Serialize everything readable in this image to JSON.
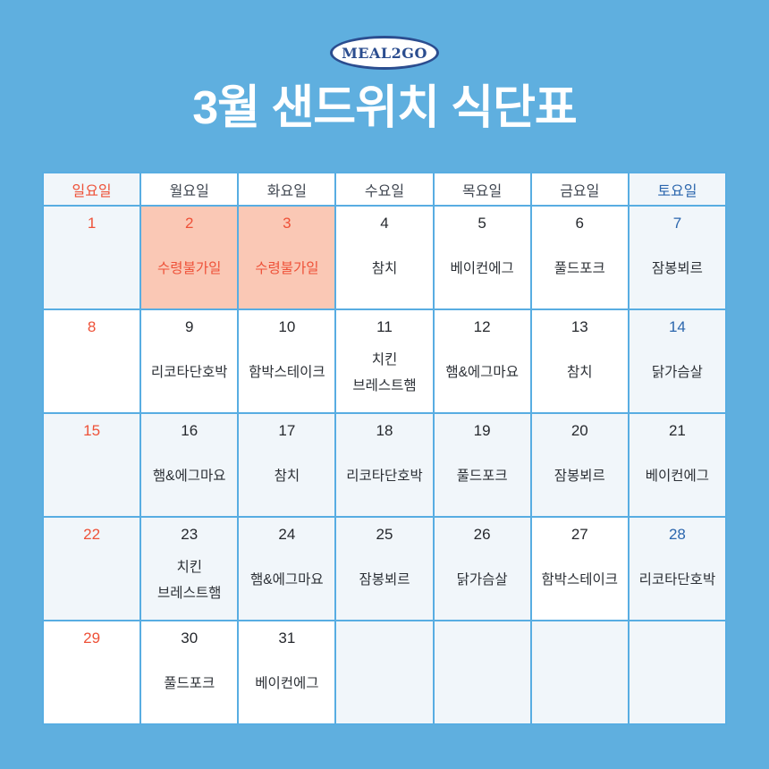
{
  "logo": {
    "text": "MEAL2GO"
  },
  "title": "3월 샌드위치 식단표",
  "colors": {
    "page_bg": "#5fafdf",
    "grid_line": "#58ade2",
    "cell_white": "#ffffff",
    "cell_tint": "#f1f6fa",
    "cell_salmon": "#fac8b5",
    "sunday_red": "#ee5138",
    "saturday_blue": "#2b66ad",
    "weekday_dark": "#26292e",
    "header_dark": "#3f4650",
    "menu_text": "#2c3036",
    "logo_navy": "#2b4d8f"
  },
  "calendar": {
    "headers": [
      {
        "label": "일요일",
        "color": "red",
        "bg": "tint"
      },
      {
        "label": "월요일",
        "color": "dark",
        "bg": "white"
      },
      {
        "label": "화요일",
        "color": "dark",
        "bg": "white"
      },
      {
        "label": "수요일",
        "color": "dark",
        "bg": "white"
      },
      {
        "label": "목요일",
        "color": "dark",
        "bg": "white"
      },
      {
        "label": "금요일",
        "color": "dark",
        "bg": "white"
      },
      {
        "label": "토요일",
        "color": "blue",
        "bg": "tint"
      }
    ],
    "weeks": [
      [
        {
          "day": "1",
          "num": "red",
          "menu": [],
          "menu_color": "dark",
          "bg": "tint"
        },
        {
          "day": "2",
          "num": "red",
          "menu": [
            "수령불가일"
          ],
          "menu_color": "red",
          "bg": "salmon"
        },
        {
          "day": "3",
          "num": "red",
          "menu": [
            "수령불가일"
          ],
          "menu_color": "red",
          "bg": "salmon"
        },
        {
          "day": "4",
          "num": "dark",
          "menu": [
            "참치"
          ],
          "menu_color": "dark",
          "bg": "white"
        },
        {
          "day": "5",
          "num": "dark",
          "menu": [
            "베이컨에그"
          ],
          "menu_color": "dark",
          "bg": "white"
        },
        {
          "day": "6",
          "num": "dark",
          "menu": [
            "풀드포크"
          ],
          "menu_color": "dark",
          "bg": "white"
        },
        {
          "day": "7",
          "num": "blue",
          "menu": [
            "잠봉뵈르"
          ],
          "menu_color": "dark",
          "bg": "tint"
        }
      ],
      [
        {
          "day": "8",
          "num": "red",
          "menu": [],
          "menu_color": "dark",
          "bg": "white"
        },
        {
          "day": "9",
          "num": "dark",
          "menu": [
            "리코타단호박"
          ],
          "menu_color": "dark",
          "bg": "white"
        },
        {
          "day": "10",
          "num": "dark",
          "menu": [
            "함박스테이크"
          ],
          "menu_color": "dark",
          "bg": "white"
        },
        {
          "day": "11",
          "num": "dark",
          "menu": [
            "치킨",
            "브레스트햄"
          ],
          "menu_color": "dark",
          "bg": "white"
        },
        {
          "day": "12",
          "num": "dark",
          "menu": [
            "햄&에그마요"
          ],
          "menu_color": "dark",
          "bg": "white"
        },
        {
          "day": "13",
          "num": "dark",
          "menu": [
            "참치"
          ],
          "menu_color": "dark",
          "bg": "white"
        },
        {
          "day": "14",
          "num": "blue",
          "menu": [
            "닭가슴살"
          ],
          "menu_color": "dark",
          "bg": "tint"
        }
      ],
      [
        {
          "day": "15",
          "num": "red",
          "menu": [],
          "menu_color": "dark",
          "bg": "tint"
        },
        {
          "day": "16",
          "num": "dark",
          "menu": [
            "햄&에그마요"
          ],
          "menu_color": "dark",
          "bg": "tint"
        },
        {
          "day": "17",
          "num": "dark",
          "menu": [
            "참치"
          ],
          "menu_color": "dark",
          "bg": "tint"
        },
        {
          "day": "18",
          "num": "dark",
          "menu": [
            "리코타단호박"
          ],
          "menu_color": "dark",
          "bg": "tint"
        },
        {
          "day": "19",
          "num": "dark",
          "menu": [
            "풀드포크"
          ],
          "menu_color": "dark",
          "bg": "tint"
        },
        {
          "day": "20",
          "num": "dark",
          "menu": [
            "잠봉뵈르"
          ],
          "menu_color": "dark",
          "bg": "tint"
        },
        {
          "day": "21",
          "num": "dark",
          "menu": [
            "베이컨에그"
          ],
          "menu_color": "dark",
          "bg": "tint"
        }
      ],
      [
        {
          "day": "22",
          "num": "red",
          "menu": [],
          "menu_color": "dark",
          "bg": "tint"
        },
        {
          "day": "23",
          "num": "dark",
          "menu": [
            "치킨",
            "브레스트햄"
          ],
          "menu_color": "dark",
          "bg": "tint"
        },
        {
          "day": "24",
          "num": "dark",
          "menu": [
            "햄&에그마요"
          ],
          "menu_color": "dark",
          "bg": "tint"
        },
        {
          "day": "25",
          "num": "dark",
          "menu": [
            "잠봉뵈르"
          ],
          "menu_color": "dark",
          "bg": "tint"
        },
        {
          "day": "26",
          "num": "dark",
          "menu": [
            "닭가슴살"
          ],
          "menu_color": "dark",
          "bg": "tint"
        },
        {
          "day": "27",
          "num": "dark",
          "menu": [
            "함박스테이크"
          ],
          "menu_color": "dark",
          "bg": "white"
        },
        {
          "day": "28",
          "num": "blue",
          "menu": [
            "리코타단호박"
          ],
          "menu_color": "dark",
          "bg": "tint"
        }
      ],
      [
        {
          "day": "29",
          "num": "red",
          "menu": [],
          "menu_color": "dark",
          "bg": "white"
        },
        {
          "day": "30",
          "num": "dark",
          "menu": [
            "풀드포크"
          ],
          "menu_color": "dark",
          "bg": "white"
        },
        {
          "day": "31",
          "num": "dark",
          "menu": [
            "베이컨에그"
          ],
          "menu_color": "dark",
          "bg": "white"
        },
        {
          "day": "",
          "num": "dark",
          "menu": [],
          "menu_color": "dark",
          "bg": "tint"
        },
        {
          "day": "",
          "num": "dark",
          "menu": [],
          "menu_color": "dark",
          "bg": "tint"
        },
        {
          "day": "",
          "num": "dark",
          "menu": [],
          "menu_color": "dark",
          "bg": "tint"
        },
        {
          "day": "",
          "num": "dark",
          "menu": [],
          "menu_color": "dark",
          "bg": "tint"
        }
      ]
    ]
  }
}
